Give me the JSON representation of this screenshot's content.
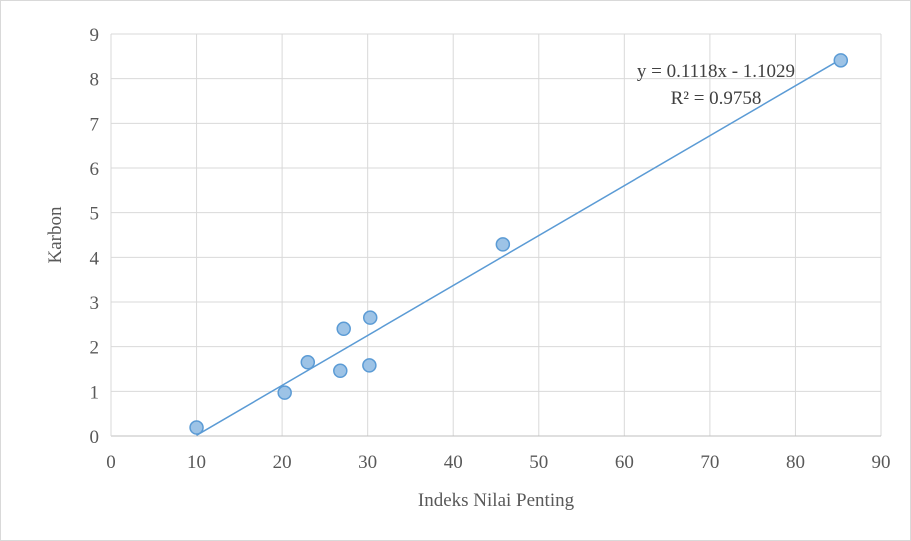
{
  "chart_data": {
    "type": "scatter",
    "title": "",
    "xlabel": "Indeks Nilai Penting",
    "ylabel": "Karbon",
    "xlim": [
      0,
      90
    ],
    "ylim": [
      0,
      9
    ],
    "x_ticks": [
      "0",
      "10",
      "20",
      "30",
      "40",
      "50",
      "60",
      "70",
      "80",
      "90"
    ],
    "y_ticks": [
      "0",
      "1",
      "2",
      "3",
      "4",
      "5",
      "6",
      "7",
      "8",
      "9"
    ],
    "grid": true,
    "legend": "none",
    "series": [
      {
        "x": [
          10.0,
          20.3,
          23.0,
          26.8,
          27.2,
          30.2,
          30.3,
          45.8,
          85.3
        ],
        "y": [
          0.19,
          0.97,
          1.65,
          1.46,
          2.4,
          1.58,
          2.65,
          4.29,
          8.41
        ],
        "marker_color": "#9dc3e6",
        "marker_edge_color": "#5b9bd5"
      }
    ],
    "trendline": {
      "type": "linear",
      "slope": 0.1118,
      "intercept": -1.1029,
      "color": "#5b9bd5",
      "equation_label": "y = 0.1118x - 1.1029",
      "r2_label": "R² = 0.9758"
    },
    "colors": {
      "grid": "#d9d9d9",
      "axis": "#bfbfbf",
      "text": "#595959"
    }
  }
}
